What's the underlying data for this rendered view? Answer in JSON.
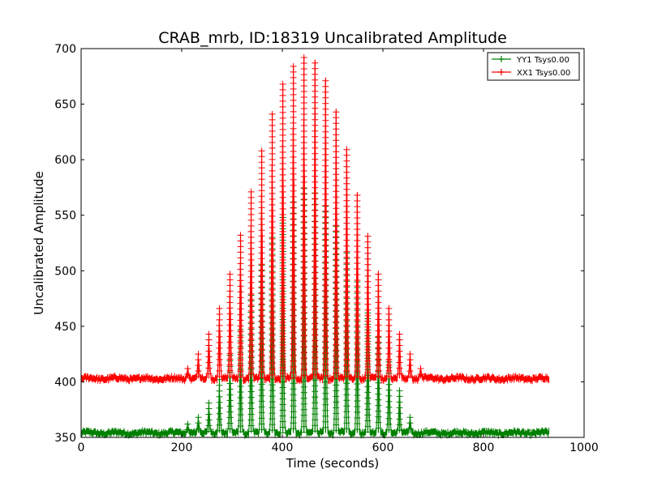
{
  "chart_data": {
    "type": "line",
    "title": "CRAB_mrb, ID:18319 Uncalibrated Amplitude",
    "xlabel": "Time (seconds)",
    "ylabel": "Uncalibrated Amplitude",
    "xlim": [
      0,
      1000
    ],
    "ylim": [
      350,
      700
    ],
    "xticks": [
      0,
      200,
      400,
      600,
      800,
      1000
    ],
    "yticks": [
      350,
      400,
      450,
      500,
      550,
      600,
      650,
      700
    ],
    "grid": false,
    "legend_position": "top-right",
    "series": [
      {
        "name": "YY1 Tsys0.00",
        "color": "#008000",
        "marker": "+",
        "baseline": 354,
        "x_range": [
          0,
          930
        ],
        "peaks": [
          {
            "x": 212,
            "y": 362
          },
          {
            "x": 233,
            "y": 368
          },
          {
            "x": 254,
            "y": 381
          },
          {
            "x": 275,
            "y": 402
          },
          {
            "x": 296,
            "y": 424
          },
          {
            "x": 317,
            "y": 447
          },
          {
            "x": 338,
            "y": 478
          },
          {
            "x": 359,
            "y": 505
          },
          {
            "x": 380,
            "y": 530
          },
          {
            "x": 401,
            "y": 548
          },
          {
            "x": 422,
            "y": 562
          },
          {
            "x": 443,
            "y": 574
          },
          {
            "x": 465,
            "y": 570
          },
          {
            "x": 486,
            "y": 558
          },
          {
            "x": 507,
            "y": 540
          },
          {
            "x": 528,
            "y": 516
          },
          {
            "x": 549,
            "y": 490
          },
          {
            "x": 570,
            "y": 462
          },
          {
            "x": 591,
            "y": 440
          },
          {
            "x": 612,
            "y": 418
          },
          {
            "x": 633,
            "y": 392
          },
          {
            "x": 654,
            "y": 368
          }
        ]
      },
      {
        "name": "XX1 Tsys0.00",
        "color": "#ff0000",
        "marker": "+",
        "baseline": 403,
        "x_range": [
          0,
          930
        ],
        "peaks": [
          {
            "x": 212,
            "y": 412
          },
          {
            "x": 233,
            "y": 425
          },
          {
            "x": 254,
            "y": 443
          },
          {
            "x": 275,
            "y": 466
          },
          {
            "x": 296,
            "y": 497
          },
          {
            "x": 317,
            "y": 532
          },
          {
            "x": 338,
            "y": 571
          },
          {
            "x": 359,
            "y": 608
          },
          {
            "x": 380,
            "y": 641
          },
          {
            "x": 401,
            "y": 668
          },
          {
            "x": 422,
            "y": 684
          },
          {
            "x": 443,
            "y": 692
          },
          {
            "x": 465,
            "y": 687
          },
          {
            "x": 486,
            "y": 671
          },
          {
            "x": 507,
            "y": 643
          },
          {
            "x": 528,
            "y": 609
          },
          {
            "x": 549,
            "y": 568
          },
          {
            "x": 570,
            "y": 531
          },
          {
            "x": 591,
            "y": 497
          },
          {
            "x": 612,
            "y": 466
          },
          {
            "x": 633,
            "y": 443
          },
          {
            "x": 654,
            "y": 425
          },
          {
            "x": 675,
            "y": 412
          }
        ]
      }
    ]
  }
}
